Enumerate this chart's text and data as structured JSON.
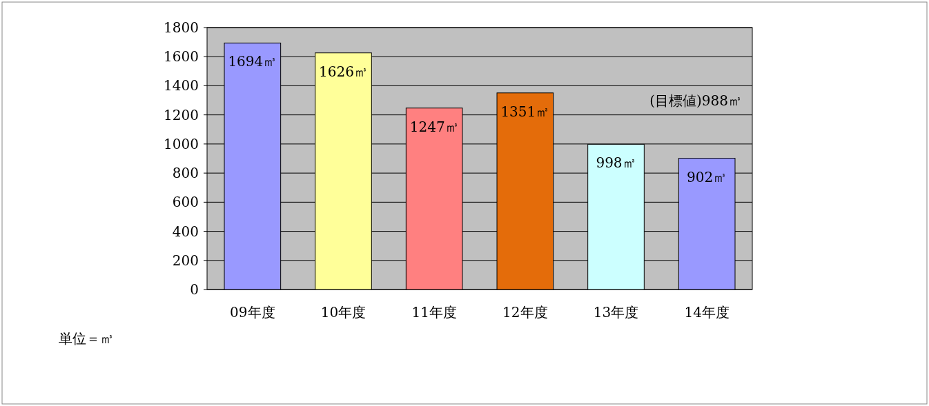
{
  "chart_data": {
    "type": "bar",
    "categories": [
      "09年度",
      "10年度",
      "11年度",
      "12年度",
      "13年度",
      "14年度"
    ],
    "values": [
      1694,
      1626,
      1247,
      1351,
      998,
      902
    ],
    "colors": [
      "#9999ff",
      "#ffff99",
      "#ff8080",
      "#e46c0a",
      "#ccffff",
      "#9999ff"
    ],
    "value_labels": [
      "1694㎥",
      "1626㎥",
      "1247㎥",
      "1351㎥",
      "998㎥",
      "902㎥"
    ],
    "ylim": [
      0,
      1800
    ],
    "yticks": [
      0,
      200,
      400,
      600,
      800,
      1000,
      1200,
      1400,
      1600,
      1800
    ],
    "grid": "y",
    "annotations": [
      "(目標値)988㎥",
      "単位＝㎥"
    ]
  }
}
